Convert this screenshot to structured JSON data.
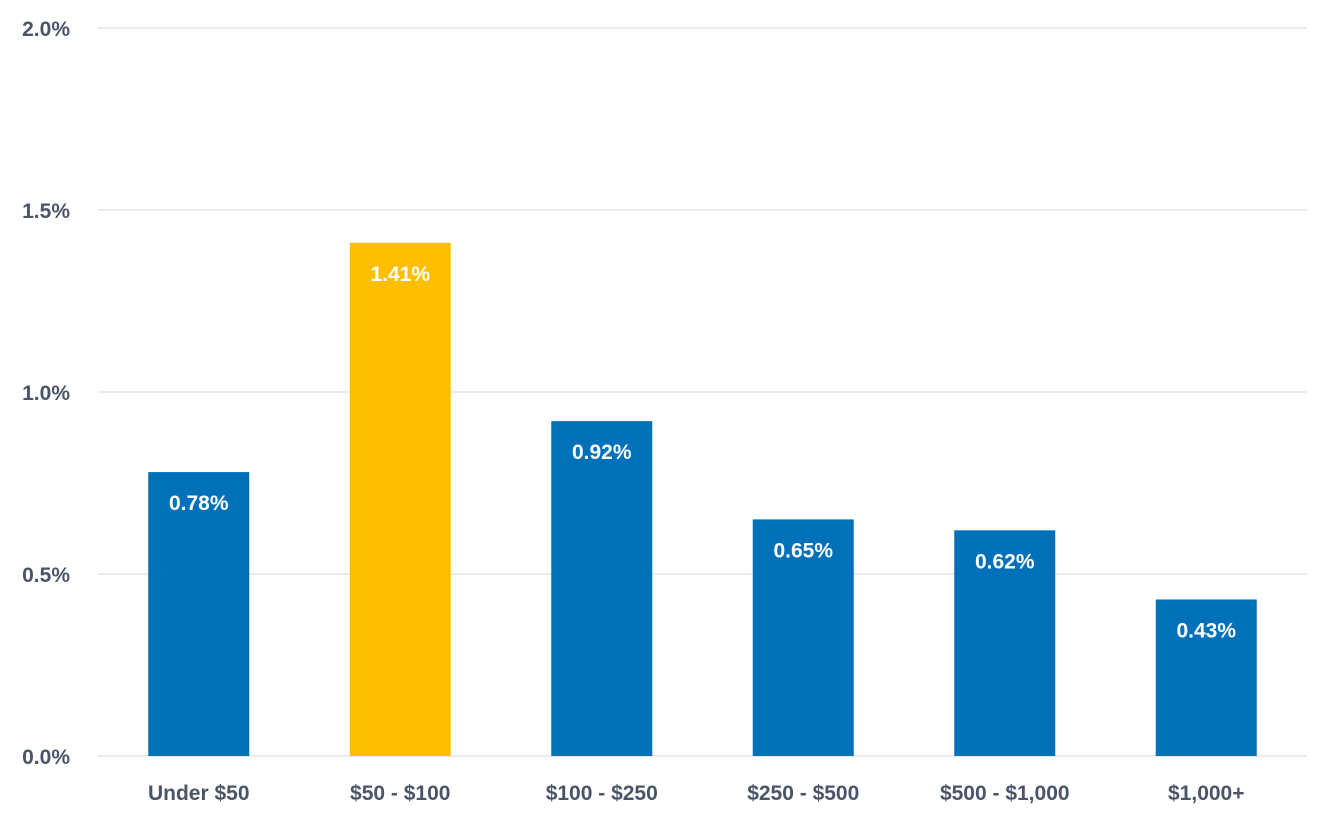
{
  "chart_data": {
    "type": "bar",
    "title": "",
    "xlabel": "",
    "ylabel": "",
    "categories": [
      "Under $50",
      "$50 - $100",
      "$100 - $250",
      "$250 - $500",
      "$500 - $1,000",
      "$1,000+"
    ],
    "values": [
      0.78,
      1.41,
      0.92,
      0.65,
      0.62,
      0.43
    ],
    "value_labels": [
      "0.78%",
      "1.41%",
      "0.92%",
      "0.65%",
      "0.62%",
      "0.43%"
    ],
    "ylim": [
      0,
      2.0
    ],
    "y_ticks": [
      0,
      0.5,
      1.0,
      1.5,
      2.0
    ],
    "y_tick_labels": [
      "0.0%",
      "0.5%",
      "1.0%",
      "1.5%",
      "2.0%"
    ],
    "grid": true,
    "legend": "none",
    "colors": {
      "default_bar": "#0071b8",
      "highlight_bar": "#fdbf00",
      "highlight_index": 1,
      "gridline": "#dcdfe4",
      "axis_text": "#4a5568",
      "data_label_text": "#ffffff"
    }
  }
}
